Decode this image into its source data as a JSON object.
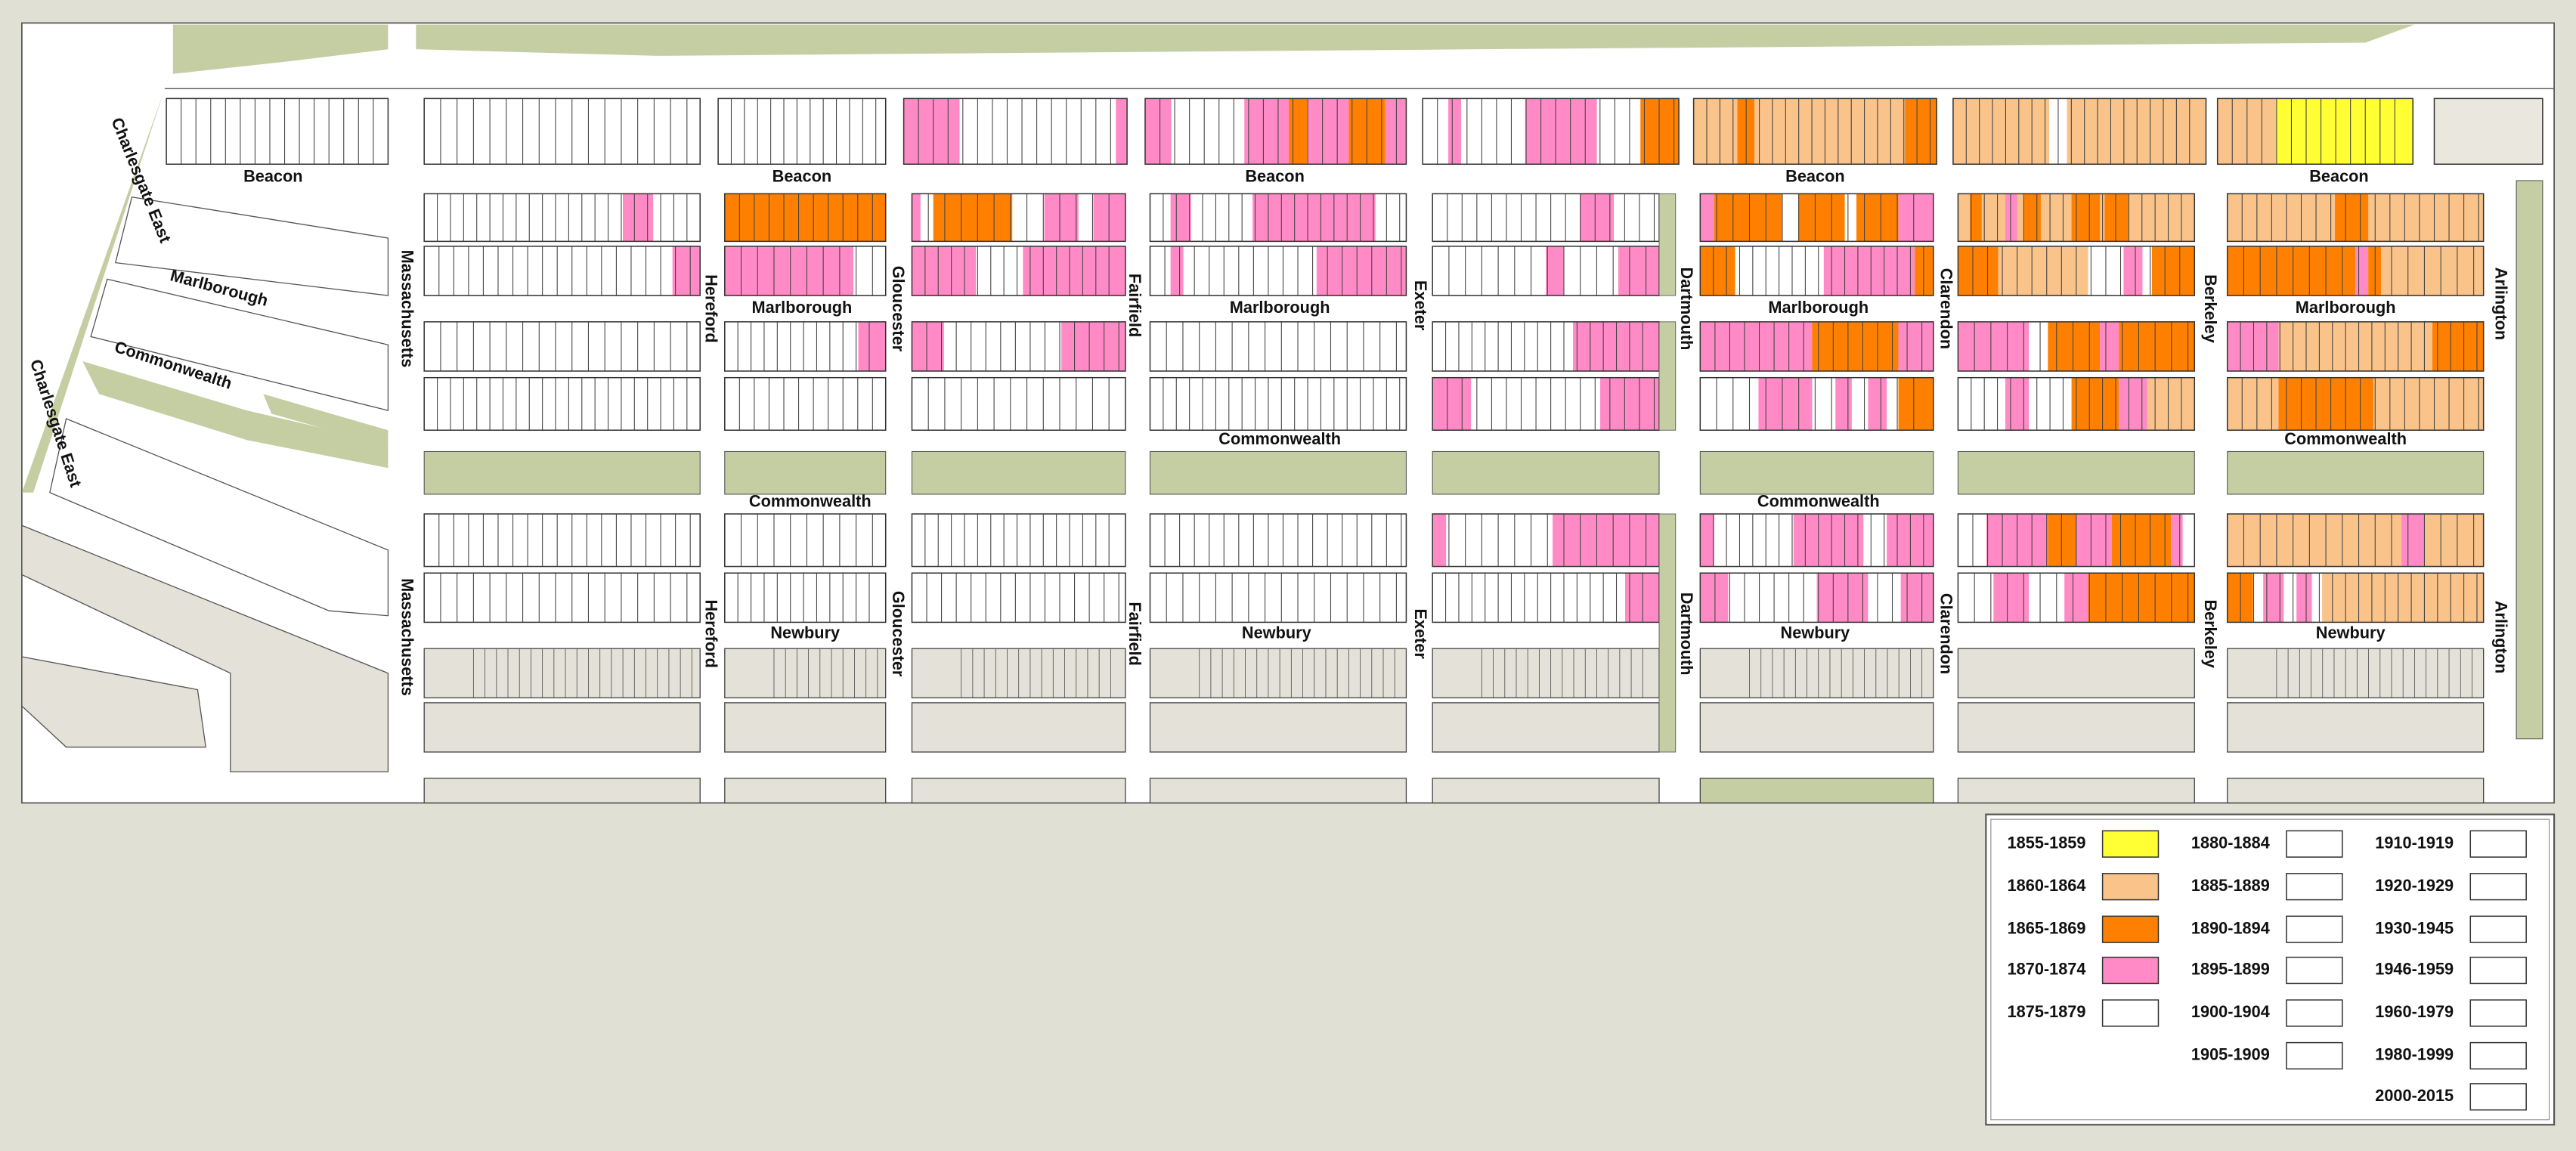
{
  "streets": [
    "Beacon",
    "Beacon",
    "Beacon",
    "Beacon",
    "Beacon",
    "Marlborough",
    "Marlborough",
    "Marlborough",
    "Marlborough",
    "Marlborough",
    "Commonwealth",
    "Commonwealth",
    "Commonwealth",
    "Commonwealth",
    "Commonwealth",
    "Newbury",
    "Newbury",
    "Newbury",
    "Newbury",
    "Charlesgate East",
    "Charlesgate East",
    "Massachusetts",
    "Massachusetts",
    "Hereford",
    "Hereford",
    "Gloucester",
    "Gloucester",
    "Fairfield",
    "Fairfield",
    "Exeter",
    "Exeter",
    "Dartmouth",
    "Dartmouth",
    "Clarendon",
    "Clarendon",
    "Berkeley",
    "Berkeley",
    "Arlington",
    "Arlington"
  ],
  "legend": {
    "items": [
      {
        "label": "1855-1859",
        "color": "#ffff33"
      },
      {
        "label": "1860-1864",
        "color": "#f9c38a"
      },
      {
        "label": "1865-1869",
        "color": "#ff8000"
      },
      {
        "label": "1870-1874",
        "color": "#ff8ac6"
      },
      {
        "label": "1875-1879",
        "color": "#ffffff"
      },
      {
        "label": "1880-1884",
        "color": "#ffffff"
      },
      {
        "label": "1885-1889",
        "color": "#ffffff"
      },
      {
        "label": "1890-1894",
        "color": "#ffffff"
      },
      {
        "label": "1895-1899",
        "color": "#ffffff"
      },
      {
        "label": "1900-1904",
        "color": "#ffffff"
      },
      {
        "label": "1905-1909",
        "color": "#ffffff"
      },
      {
        "label": "1910-1919",
        "color": "#ffffff"
      },
      {
        "label": "1920-1929",
        "color": "#ffffff"
      },
      {
        "label": "1930-1945",
        "color": "#ffffff"
      },
      {
        "label": "1946-1959",
        "color": "#ffffff"
      },
      {
        "label": "1960-1979",
        "color": "#ffffff"
      },
      {
        "label": "1980-1999",
        "color": "#ffffff"
      },
      {
        "label": "2000-2015",
        "color": "#ffffff"
      }
    ]
  }
}
